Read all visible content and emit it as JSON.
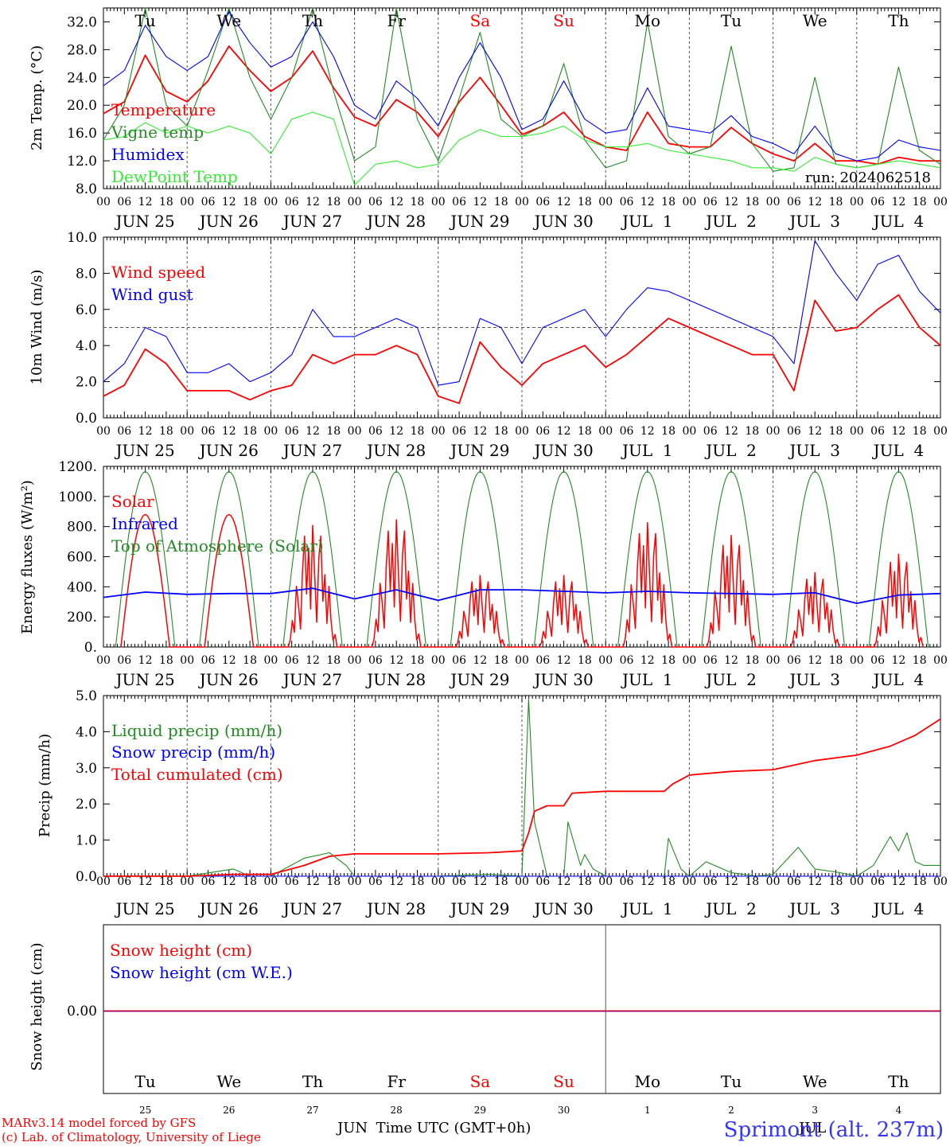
{
  "days": [
    "JUN 25",
    "JUN 26",
    "JUN 27",
    "JUN 28",
    "JUN 29",
    "JUN 30",
    "JUL  1",
    "JUL  2",
    "JUL  3",
    "JUL  4"
  ],
  "weekdays": [
    "Tu",
    "We",
    "Th",
    "Fr",
    "Sa",
    "Su",
    "Mo",
    "Tu",
    "We",
    "Th"
  ],
  "weekend_index": [
    4,
    5
  ],
  "day_numbers": [
    "25",
    "26",
    "27",
    "28",
    "29",
    "30",
    "1",
    "2",
    "3",
    "4"
  ],
  "hour_labels": [
    "00",
    "06",
    "12",
    "18"
  ],
  "hour_label_end": "00",
  "run_label": "run: 2024062518",
  "footer": {
    "model": "MARv3.14 model forced by GFS",
    "lab": "(c) Lab. of Climatology, University of Liege",
    "xlabel": "Time UTC (GMT+0h)",
    "month_left": "JUN",
    "month_right": "JUL",
    "station": "Sprimont (alt. 237m)"
  },
  "colors": {
    "red": "#ff0000",
    "green": "#228b22",
    "blue": "#0000ff",
    "lime": "#33ee33",
    "purple": "#800080"
  },
  "chart_data": [
    {
      "type": "line",
      "ylabel": "2m Temp. (°C)",
      "ylim": [
        8,
        34
      ],
      "yticks": [
        "8.0",
        "12.0",
        "16.0",
        "20.0",
        "24.0",
        "28.0",
        "32.0"
      ],
      "x_unit": "day offset from 2024-06-25 00 UTC",
      "series": [
        {
          "name": "Temperature",
          "color": "red",
          "x": [
            0,
            0.25,
            0.5,
            0.75,
            1,
            1.25,
            1.5,
            1.75,
            2,
            2.25,
            2.5,
            2.75,
            3,
            3.25,
            3.5,
            3.75,
            4,
            4.25,
            4.5,
            4.75,
            5,
            5.25,
            5.5,
            5.75,
            6,
            6.25,
            6.5,
            6.75,
            7,
            7.25,
            7.5,
            7.75,
            8,
            8.25,
            8.5,
            8.75,
            9,
            9.25,
            9.5,
            9.75,
            10
          ],
          "y": [
            18.8,
            20.5,
            27.2,
            22.0,
            20.5,
            23.5,
            28.5,
            25.0,
            22.0,
            24.0,
            27.8,
            22.5,
            18.3,
            17.0,
            20.8,
            19.0,
            15.5,
            20.5,
            24.0,
            20.0,
            15.8,
            17.0,
            19.0,
            15.5,
            14.0,
            13.5,
            19.0,
            14.5,
            14.0,
            14.0,
            16.8,
            14.5,
            13.0,
            12.0,
            14.5,
            12.0,
            12.0,
            11.5,
            12.5,
            12.0,
            12.0
          ]
        },
        {
          "name": "Vigne temp",
          "color": "green",
          "x": [
            0,
            0.25,
            0.5,
            0.75,
            1,
            1.25,
            1.5,
            1.75,
            2,
            2.25,
            2.5,
            2.75,
            3,
            3.25,
            3.5,
            3.75,
            4,
            4.25,
            4.5,
            4.75,
            5,
            5.25,
            5.5,
            5.75,
            6,
            6.25,
            6.5,
            6.75,
            7,
            7.25,
            7.5,
            7.75,
            8,
            8.25,
            8.5,
            8.75,
            9,
            9.25,
            9.5,
            9.75,
            10
          ],
          "y": [
            15.0,
            20.0,
            34.0,
            20.0,
            17.0,
            25.0,
            34.0,
            24.0,
            18.0,
            24.0,
            34.0,
            22.0,
            12.0,
            14.0,
            34.0,
            18.0,
            12.0,
            21.0,
            30.5,
            18.0,
            15.5,
            17.0,
            26.0,
            15.0,
            11.0,
            12.0,
            32.0,
            15.5,
            13.0,
            14.0,
            28.5,
            14.5,
            10.5,
            11.0,
            24.0,
            11.5,
            11.0,
            11.5,
            25.5,
            13.5,
            11.5
          ]
        },
        {
          "name": "Humidex",
          "color": "blue",
          "x": [
            0,
            0.25,
            0.5,
            0.75,
            1,
            1.25,
            1.5,
            1.75,
            2,
            2.25,
            2.5,
            2.75,
            3,
            3.25,
            3.5,
            3.75,
            4,
            4.25,
            4.5,
            4.75,
            5,
            5.25,
            5.5,
            5.75,
            6,
            6.25,
            6.5,
            6.75,
            7,
            7.25,
            7.5,
            7.75,
            8,
            8.25,
            8.5,
            8.75,
            9,
            9.25,
            9.5,
            9.75,
            10
          ],
          "y": [
            22.8,
            25.0,
            31.5,
            27.0,
            25.0,
            27.0,
            33.5,
            29.0,
            25.5,
            27.0,
            32.0,
            27.0,
            20.0,
            18.0,
            23.5,
            21.0,
            17.0,
            24.0,
            29.0,
            24.0,
            16.5,
            18.0,
            23.5,
            18.0,
            16.0,
            16.5,
            22.5,
            17.0,
            16.5,
            16.0,
            18.5,
            15.5,
            14.5,
            13.0,
            17.0,
            13.0,
            12.0,
            12.5,
            15.0,
            14.0,
            13.5
          ]
        },
        {
          "name": "DewPoint Temp",
          "color": "lime",
          "x": [
            0,
            0.25,
            0.5,
            0.75,
            1,
            1.25,
            1.5,
            1.75,
            2,
            2.25,
            2.5,
            2.75,
            3,
            3.25,
            3.5,
            3.75,
            4,
            4.25,
            4.5,
            4.75,
            5,
            5.25,
            5.5,
            5.75,
            6,
            6.25,
            6.5,
            6.75,
            7,
            7.25,
            7.5,
            7.75,
            8,
            8.25,
            8.5,
            8.75,
            9,
            9.25,
            9.5,
            9.75,
            10
          ],
          "y": [
            15.0,
            15.5,
            17.5,
            16.0,
            17.0,
            16.0,
            17.0,
            16.0,
            13.0,
            18.0,
            19.0,
            18.0,
            8.5,
            11.5,
            12.0,
            11.0,
            11.5,
            15.0,
            16.5,
            15.5,
            15.5,
            16.0,
            17.0,
            15.0,
            14.0,
            14.0,
            14.5,
            13.5,
            13.0,
            12.5,
            12.0,
            11.0,
            11.0,
            10.5,
            12.5,
            11.5,
            11.0,
            11.5,
            12.0,
            11.5,
            11.0
          ]
        }
      ]
    },
    {
      "type": "line",
      "ylabel": "10m Wind (m/s)",
      "ylim": [
        0,
        10
      ],
      "yticks": [
        "0.0",
        "2.0",
        "4.0",
        "6.0",
        "8.0",
        "10.0"
      ],
      "reference_line": 5,
      "series": [
        {
          "name": "Wind speed",
          "color": "red",
          "x": [
            0,
            0.25,
            0.5,
            0.75,
            1,
            1.25,
            1.5,
            1.75,
            2,
            2.25,
            2.5,
            2.75,
            3,
            3.25,
            3.5,
            3.75,
            4,
            4.25,
            4.5,
            4.75,
            5,
            5.25,
            5.5,
            5.75,
            6,
            6.25,
            6.5,
            6.75,
            7,
            7.25,
            7.5,
            7.75,
            8,
            8.25,
            8.5,
            8.75,
            9,
            9.25,
            9.5,
            9.75,
            10
          ],
          "y": [
            1.2,
            1.8,
            3.8,
            3.0,
            1.5,
            1.5,
            1.5,
            1.0,
            1.5,
            1.8,
            3.5,
            3.0,
            3.5,
            3.5,
            4.0,
            3.5,
            1.2,
            0.8,
            4.2,
            2.8,
            1.8,
            3.0,
            3.5,
            4.0,
            2.8,
            3.5,
            4.5,
            5.5,
            5.0,
            4.5,
            4.0,
            3.5,
            3.5,
            1.5,
            6.5,
            4.8,
            5.0,
            6.0,
            6.8,
            5.0,
            4.0
          ]
        },
        {
          "name": "Wind gust",
          "color": "blue",
          "x": [
            0,
            0.25,
            0.5,
            0.75,
            1,
            1.25,
            1.5,
            1.75,
            2,
            2.25,
            2.5,
            2.75,
            3,
            3.25,
            3.5,
            3.75,
            4,
            4.25,
            4.5,
            4.75,
            5,
            5.25,
            5.5,
            5.75,
            6,
            6.25,
            6.5,
            6.75,
            7,
            7.25,
            7.5,
            7.75,
            8,
            8.25,
            8.5,
            8.75,
            9,
            9.25,
            9.5,
            9.75,
            10
          ],
          "y": [
            2.0,
            3.0,
            5.0,
            4.5,
            2.5,
            2.5,
            3.0,
            2.0,
            2.5,
            3.5,
            6.0,
            4.5,
            4.5,
            5.0,
            5.5,
            5.0,
            1.8,
            2.0,
            5.5,
            5.0,
            3.0,
            5.0,
            5.5,
            6.0,
            4.5,
            6.0,
            7.2,
            7.0,
            6.5,
            6.0,
            5.5,
            5.0,
            4.5,
            3.0,
            9.8,
            8.0,
            6.5,
            8.5,
            9.0,
            7.0,
            5.8
          ]
        }
      ]
    },
    {
      "type": "line",
      "ylabel": "Energy fluxes (W/m²)",
      "ylim": [
        0,
        1200
      ],
      "yticks": [
        "0.",
        "200.",
        "400.",
        "600.",
        "800.",
        "1000.",
        "1200."
      ],
      "series": [
        {
          "name": "Solar",
          "color": "red",
          "peaks": [
            {
              "day": 0,
              "y": 880,
              "shape": "smooth"
            },
            {
              "day": 1,
              "y": 880,
              "shape": "smooth"
            },
            {
              "day": 2,
              "y": 850,
              "shape": "jagged"
            },
            {
              "day": 3,
              "y": 890,
              "shape": "jagged"
            },
            {
              "day": 4,
              "y": 500,
              "shape": "jagged"
            },
            {
              "day": 5,
              "y": 500,
              "shape": "jagged"
            },
            {
              "day": 6,
              "y": 870,
              "shape": "jagged"
            },
            {
              "day": 7,
              "y": 780,
              "shape": "jagged"
            },
            {
              "day": 8,
              "y": 520,
              "shape": "jagged"
            },
            {
              "day": 9,
              "y": 650,
              "shape": "jagged"
            }
          ]
        },
        {
          "name": "Infrared",
          "color": "blue",
          "x": [
            0,
            0.5,
            1,
            1.5,
            2,
            2.5,
            3,
            3.5,
            4,
            4.5,
            5,
            5.5,
            6,
            6.5,
            7,
            7.5,
            8,
            8.5,
            9,
            9.5,
            10
          ],
          "y": [
            330,
            365,
            350,
            355,
            355,
            390,
            320,
            380,
            310,
            380,
            380,
            370,
            360,
            370,
            360,
            355,
            350,
            360,
            290,
            345,
            355
          ]
        },
        {
          "name": "Top of Atmosphere (Solar)",
          "color": "green",
          "daily_peak": 1165
        }
      ]
    },
    {
      "type": "line",
      "ylabel": "Precip (mm/h)",
      "ylim": [
        0,
        5
      ],
      "yticks": [
        "0.0",
        "1.0",
        "2.0",
        "3.0",
        "4.0",
        "5.0"
      ],
      "series": [
        {
          "name": "Liquid precip (mm/h)",
          "color": "green",
          "x": [
            0,
            1,
            1.55,
            1.75,
            2,
            2.4,
            2.7,
            2.9,
            3,
            4,
            4.6,
            5,
            5.08,
            5.15,
            5.3,
            5.5,
            5.55,
            5.7,
            5.75,
            5.85,
            6,
            6.7,
            6.75,
            6.9,
            7,
            7.2,
            7.5,
            7.8,
            8,
            8.3,
            8.5,
            8.8,
            9,
            9.2,
            9.4,
            9.5,
            9.6,
            9.7,
            9.8,
            10
          ],
          "y": [
            0,
            0,
            0.2,
            0,
            0,
            0.5,
            0.65,
            0.3,
            0,
            0,
            0.05,
            0,
            4.9,
            1.5,
            0,
            0,
            1.5,
            0.3,
            0.6,
            0.2,
            0,
            0,
            1.05,
            0.2,
            0,
            0.4,
            0.1,
            0,
            0.05,
            0.8,
            0.2,
            0.1,
            0,
            0.3,
            1.1,
            0.7,
            1.2,
            0.4,
            0.3,
            0.3
          ]
        },
        {
          "name": "Snow precip (mm/h)",
          "color": "blue",
          "x": [
            0,
            10
          ],
          "y": [
            0,
            0
          ]
        },
        {
          "name": "Total cumulated (cm)",
          "color": "red",
          "x": [
            0,
            1,
            1.55,
            2,
            2.4,
            2.7,
            3,
            4,
            4.6,
            5,
            5.08,
            5.15,
            5.3,
            5.5,
            5.6,
            6,
            6.7,
            6.8,
            7,
            7.5,
            8,
            8.3,
            8.5,
            9,
            9.4,
            9.7,
            10
          ],
          "y": [
            0,
            0,
            0.05,
            0.05,
            0.3,
            0.55,
            0.62,
            0.62,
            0.65,
            0.7,
            1.2,
            1.8,
            1.95,
            1.95,
            2.3,
            2.35,
            2.35,
            2.55,
            2.8,
            2.9,
            2.95,
            3.1,
            3.2,
            3.35,
            3.6,
            3.9,
            4.35
          ]
        }
      ]
    },
    {
      "type": "line",
      "ylabel": "Snow height (cm)",
      "yticks": [
        "0.00"
      ],
      "series": [
        {
          "name": "Snow height (cm)",
          "color": "red",
          "x": [
            0,
            10
          ],
          "y": [
            0,
            0
          ]
        },
        {
          "name": "Snow height (cm W.E.)",
          "color": "blue",
          "x": [
            0,
            10
          ],
          "y": [
            0,
            0
          ]
        }
      ]
    }
  ]
}
